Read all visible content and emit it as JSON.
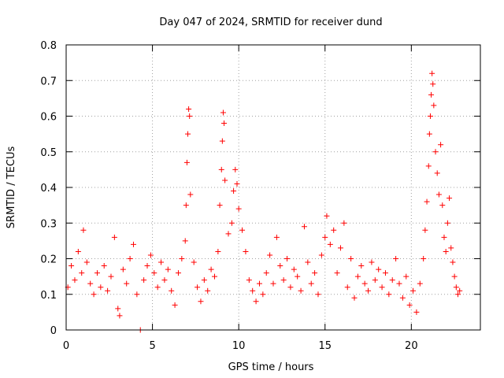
{
  "chart_data": {
    "type": "scatter",
    "title": "Day 047 of 2024, SRMTID for receiver dund",
    "xlabel": "GPS time / hours",
    "ylabel": "SRMTID / TECUs",
    "xlim": [
      0,
      24
    ],
    "ylim": [
      0,
      0.8
    ],
    "xticks": [
      0,
      5,
      10,
      15,
      20
    ],
    "yticks": [
      0,
      0.1,
      0.2,
      0.3,
      0.4,
      0.5,
      0.6,
      0.7,
      0.8
    ],
    "xtick_labels": [
      "0",
      "5",
      "10",
      "15",
      "20"
    ],
    "ytick_labels": [
      "0",
      "0.1",
      "0.2",
      "0.3",
      "0.4",
      "0.5",
      "0.6",
      "0.7",
      "0.8"
    ],
    "grid": true,
    "marker": "plus",
    "color": "#ff0000",
    "series": [
      {
        "name": "SRMTID",
        "points": [
          [
            0.1,
            0.12
          ],
          [
            0.3,
            0.18
          ],
          [
            0.5,
            0.14
          ],
          [
            0.7,
            0.22
          ],
          [
            0.9,
            0.16
          ],
          [
            1.0,
            0.28
          ],
          [
            1.2,
            0.19
          ],
          [
            1.4,
            0.13
          ],
          [
            1.6,
            0.1
          ],
          [
            1.8,
            0.16
          ],
          [
            2.0,
            0.12
          ],
          [
            2.2,
            0.18
          ],
          [
            2.4,
            0.11
          ],
          [
            2.6,
            0.15
          ],
          [
            2.8,
            0.26
          ],
          [
            3.0,
            0.06
          ],
          [
            3.1,
            0.04
          ],
          [
            3.3,
            0.17
          ],
          [
            3.5,
            0.13
          ],
          [
            3.7,
            0.2
          ],
          [
            3.9,
            0.24
          ],
          [
            4.1,
            0.1
          ],
          [
            4.3,
            0.0
          ],
          [
            4.5,
            0.14
          ],
          [
            4.7,
            0.18
          ],
          [
            4.9,
            0.21
          ],
          [
            5.1,
            0.16
          ],
          [
            5.3,
            0.12
          ],
          [
            5.5,
            0.19
          ],
          [
            5.7,
            0.14
          ],
          [
            5.9,
            0.17
          ],
          [
            6.1,
            0.11
          ],
          [
            6.3,
            0.07
          ],
          [
            6.5,
            0.16
          ],
          [
            6.7,
            0.2
          ],
          [
            6.9,
            0.25
          ],
          [
            6.95,
            0.35
          ],
          [
            7.0,
            0.47
          ],
          [
            7.05,
            0.55
          ],
          [
            7.1,
            0.62
          ],
          [
            7.15,
            0.6
          ],
          [
            7.2,
            0.38
          ],
          [
            7.4,
            0.19
          ],
          [
            7.6,
            0.12
          ],
          [
            7.8,
            0.08
          ],
          [
            8.0,
            0.14
          ],
          [
            8.2,
            0.11
          ],
          [
            8.4,
            0.17
          ],
          [
            8.6,
            0.15
          ],
          [
            8.8,
            0.22
          ],
          [
            8.9,
            0.35
          ],
          [
            9.0,
            0.45
          ],
          [
            9.05,
            0.53
          ],
          [
            9.1,
            0.61
          ],
          [
            9.15,
            0.58
          ],
          [
            9.2,
            0.42
          ],
          [
            9.4,
            0.27
          ],
          [
            9.6,
            0.3
          ],
          [
            9.7,
            0.39
          ],
          [
            9.8,
            0.45
          ],
          [
            9.9,
            0.41
          ],
          [
            10.0,
            0.34
          ],
          [
            10.2,
            0.28
          ],
          [
            10.4,
            0.22
          ],
          [
            10.6,
            0.14
          ],
          [
            10.8,
            0.11
          ],
          [
            11.0,
            0.08
          ],
          [
            11.2,
            0.13
          ],
          [
            11.4,
            0.1
          ],
          [
            11.6,
            0.16
          ],
          [
            11.8,
            0.21
          ],
          [
            12.0,
            0.13
          ],
          [
            12.2,
            0.26
          ],
          [
            12.4,
            0.18
          ],
          [
            12.6,
            0.14
          ],
          [
            12.8,
            0.2
          ],
          [
            13.0,
            0.12
          ],
          [
            13.2,
            0.17
          ],
          [
            13.4,
            0.15
          ],
          [
            13.6,
            0.11
          ],
          [
            13.8,
            0.29
          ],
          [
            14.0,
            0.19
          ],
          [
            14.2,
            0.13
          ],
          [
            14.4,
            0.16
          ],
          [
            14.6,
            0.1
          ],
          [
            14.8,
            0.21
          ],
          [
            15.0,
            0.26
          ],
          [
            15.1,
            0.32
          ],
          [
            15.3,
            0.24
          ],
          [
            15.5,
            0.28
          ],
          [
            15.7,
            0.16
          ],
          [
            15.9,
            0.23
          ],
          [
            16.1,
            0.3
          ],
          [
            16.3,
            0.12
          ],
          [
            16.5,
            0.2
          ],
          [
            16.7,
            0.09
          ],
          [
            16.9,
            0.15
          ],
          [
            17.1,
            0.18
          ],
          [
            17.3,
            0.13
          ],
          [
            17.5,
            0.11
          ],
          [
            17.7,
            0.19
          ],
          [
            17.9,
            0.14
          ],
          [
            18.1,
            0.17
          ],
          [
            18.3,
            0.12
          ],
          [
            18.5,
            0.16
          ],
          [
            18.7,
            0.1
          ],
          [
            18.9,
            0.14
          ],
          [
            19.1,
            0.2
          ],
          [
            19.3,
            0.13
          ],
          [
            19.5,
            0.09
          ],
          [
            19.7,
            0.15
          ],
          [
            19.9,
            0.07
          ],
          [
            20.1,
            0.11
          ],
          [
            20.3,
            0.05
          ],
          [
            20.5,
            0.13
          ],
          [
            20.7,
            0.2
          ],
          [
            20.8,
            0.28
          ],
          [
            20.9,
            0.36
          ],
          [
            21.0,
            0.46
          ],
          [
            21.05,
            0.55
          ],
          [
            21.1,
            0.6
          ],
          [
            21.15,
            0.66
          ],
          [
            21.2,
            0.72
          ],
          [
            21.25,
            0.69
          ],
          [
            21.3,
            0.63
          ],
          [
            21.4,
            0.5
          ],
          [
            21.5,
            0.44
          ],
          [
            21.6,
            0.38
          ],
          [
            21.7,
            0.52
          ],
          [
            21.8,
            0.35
          ],
          [
            21.9,
            0.26
          ],
          [
            22.0,
            0.22
          ],
          [
            22.1,
            0.3
          ],
          [
            22.2,
            0.37
          ],
          [
            22.3,
            0.23
          ],
          [
            22.4,
            0.19
          ],
          [
            22.5,
            0.15
          ],
          [
            22.6,
            0.12
          ],
          [
            22.7,
            0.1
          ],
          [
            22.8,
            0.11
          ]
        ]
      }
    ]
  }
}
